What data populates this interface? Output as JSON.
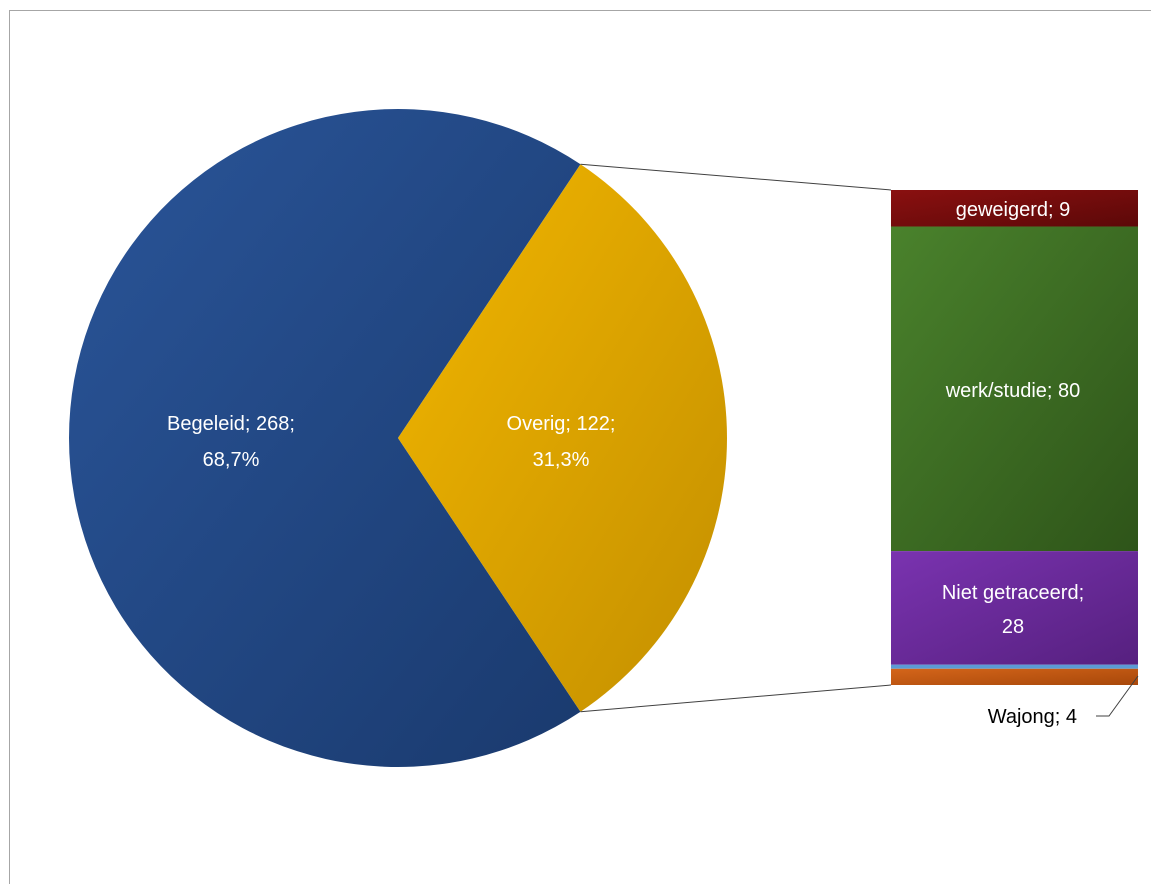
{
  "chart_data": {
    "type": "pie",
    "subtype": "bar-of-pie",
    "slices": [
      {
        "label": "Begeleid",
        "value": 268,
        "percent": "68,7%",
        "color": "#1f4e8f"
      },
      {
        "label": "Overig",
        "value": 122,
        "percent": "31,3%",
        "color": "#e3a700"
      }
    ],
    "breakdown_of": "Overig",
    "breakdown": [
      {
        "label": "geweigerd",
        "value": 9,
        "color": "#7a0c0c"
      },
      {
        "label": "werk/studie",
        "value": 80,
        "color": "#3f7224"
      },
      {
        "label": "Niet getraceerd",
        "value": 28,
        "color": "#6c2a9e"
      },
      {
        "label": "",
        "value": 1,
        "color": "#5b9bd5"
      },
      {
        "label": "Wajong",
        "value": 4,
        "color": "#c55a11"
      }
    ],
    "labels": {
      "begeleid_line1": "Begeleid; 268;",
      "begeleid_line2": "68,7%",
      "overig_line1": "Overig; 122;",
      "overig_line2": "31,3%",
      "geweigerd": "geweigerd; 9",
      "werk": "werk/studie; 80",
      "niet_line1": "Niet getraceerd;",
      "niet_line2": "28",
      "wajong": "Wajong; 4"
    }
  }
}
